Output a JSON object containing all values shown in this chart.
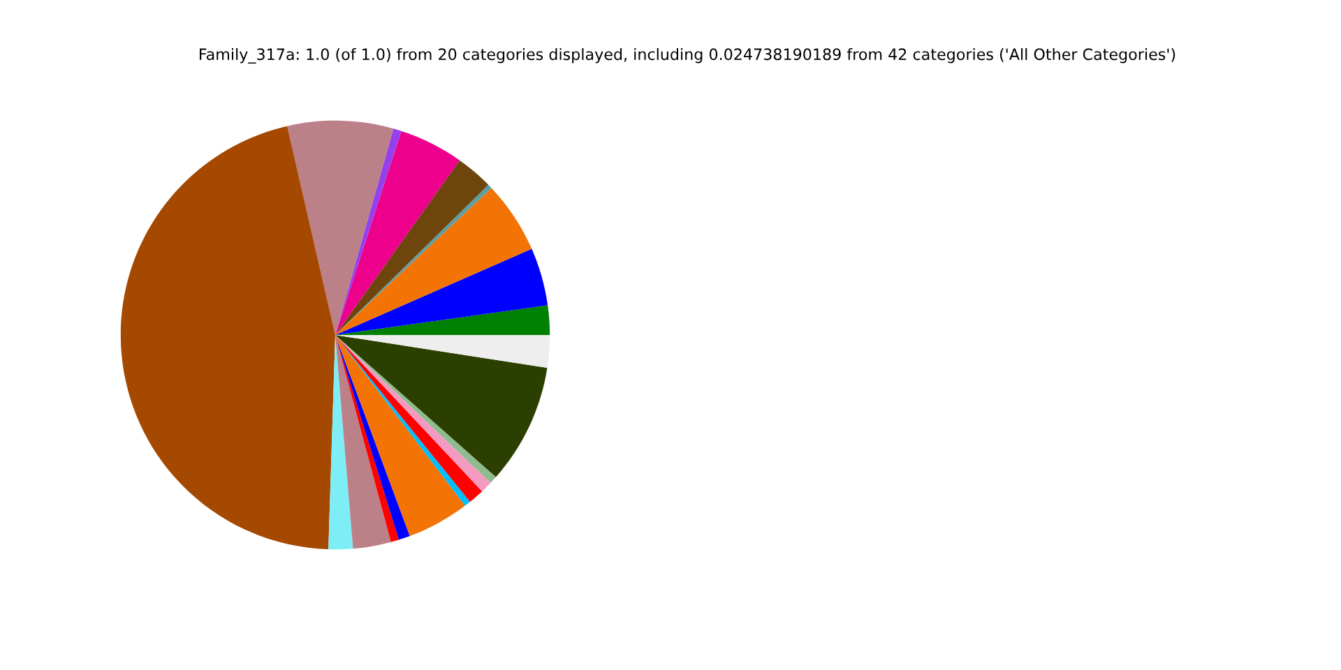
{
  "chart_data": {
    "type": "pie",
    "title": "Family_317a: 1.0 (of 1.0) from 20 categories displayed, including 0.024738190189 from 42 categories ('All Other Categories')",
    "categories": [
      null,
      null,
      null,
      null,
      null,
      null,
      null,
      null,
      null,
      null,
      null,
      null,
      null,
      null,
      null,
      null,
      null,
      null,
      null,
      null
    ],
    "values": [
      2.22,
      4.36,
      5.44,
      0.33,
      2.81,
      4.86,
      0.61,
      7.97,
      45.89,
      1.83,
      2.86,
      0.61,
      0.86,
      4.69,
      0.47,
      1.19,
      0.89,
      0.58,
      9.08,
      2.45
    ],
    "colors": [
      "#008000",
      "#0000ff",
      "#f37305",
      "#5f9ea0",
      "#6e450c",
      "#ec008c",
      "#9440ed",
      "#bc8089",
      "#a54800",
      "#7deef5",
      "#bc8089",
      "#ff0000",
      "#0000ff",
      "#f37305",
      "#00bfff",
      "#ff0000",
      "#f49ac1",
      "#8fbc8f",
      "#2b4000",
      "#eeeeee"
    ]
  }
}
